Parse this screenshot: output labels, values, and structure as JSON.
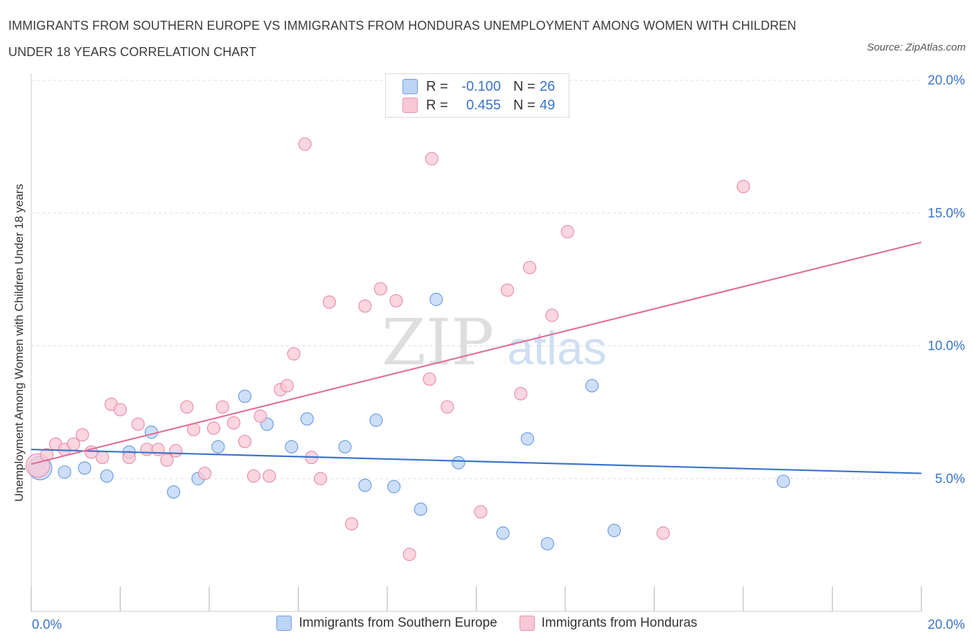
{
  "title": "IMMIGRANTS FROM SOUTHERN EUROPE VS IMMIGRANTS FROM HONDURAS UNEMPLOYMENT AMONG WOMEN WITH CHILDREN UNDER 18 YEARS CORRELATION CHART",
  "source": "Source: ZipAtlas.com",
  "watermark": {
    "zip": "ZIP",
    "atlas": "atlas"
  },
  "legend": {
    "r_label": "R =",
    "n_label": "N =",
    "series1": {
      "r": "-0.100",
      "n": "26"
    },
    "series2": {
      "r": "0.455",
      "n": "49"
    }
  },
  "colors": {
    "blue_fill": "#bcd4f5",
    "blue_stroke": "#6f9ee0",
    "blue_line": "#3a73c9",
    "pink_fill": "#f8c8d6",
    "pink_stroke": "#ea8fab",
    "pink_line": "#e0709a",
    "tick_label": "#3a73c9",
    "grid": "#dddddd"
  },
  "chart_data": {
    "type": "scatter",
    "title": "IMMIGRANTS FROM SOUTHERN EUROPE VS IMMIGRANTS FROM HONDURAS UNEMPLOYMENT AMONG WOMEN WITH CHILDREN UNDER 18 YEARS CORRELATION CHART",
    "xlabel": "",
    "ylabel": "Unemployment Among Women with Children Under 18 years",
    "xlim": [
      0,
      20
    ],
    "ylim": [
      0,
      20
    ],
    "x_tick_labels": [
      "0.0%",
      "20.0%"
    ],
    "y_ticks": [
      5,
      10,
      15,
      20
    ],
    "y_tick_labels": [
      "5.0%",
      "10.0%",
      "15.0%",
      "20.0%"
    ],
    "grid": true,
    "series": [
      {
        "name": "Immigrants from Southern Europe",
        "color": "#6f9ee0",
        "trend": {
          "x": [
            0,
            20
          ],
          "y": [
            6.1,
            5.2
          ]
        },
        "points": [
          {
            "x": 0.2,
            "y": 5.4,
            "big": true
          },
          {
            "x": 0.75,
            "y": 5.25
          },
          {
            "x": 1.2,
            "y": 5.4
          },
          {
            "x": 1.7,
            "y": 5.1
          },
          {
            "x": 2.2,
            "y": 6.0
          },
          {
            "x": 2.7,
            "y": 6.75
          },
          {
            "x": 3.2,
            "y": 4.5
          },
          {
            "x": 3.75,
            "y": 5.0
          },
          {
            "x": 4.2,
            "y": 6.2
          },
          {
            "x": 4.8,
            "y": 8.1
          },
          {
            "x": 5.3,
            "y": 7.05
          },
          {
            "x": 5.85,
            "y": 6.2
          },
          {
            "x": 6.2,
            "y": 7.25
          },
          {
            "x": 7.05,
            "y": 6.2
          },
          {
            "x": 7.5,
            "y": 4.75
          },
          {
            "x": 7.75,
            "y": 7.2
          },
          {
            "x": 8.15,
            "y": 4.7
          },
          {
            "x": 8.75,
            "y": 3.85
          },
          {
            "x": 9.1,
            "y": 11.75
          },
          {
            "x": 9.6,
            "y": 5.6
          },
          {
            "x": 10.6,
            "y": 2.95
          },
          {
            "x": 11.15,
            "y": 6.5
          },
          {
            "x": 11.6,
            "y": 2.55
          },
          {
            "x": 12.6,
            "y": 8.5
          },
          {
            "x": 13.1,
            "y": 3.05
          },
          {
            "x": 16.9,
            "y": 4.9
          }
        ]
      },
      {
        "name": "Immigrants from Honduras",
        "color": "#ea8fab",
        "trend": {
          "x": [
            0,
            20
          ],
          "y": [
            5.55,
            13.9
          ]
        },
        "points": [
          {
            "x": 0.15,
            "y": 5.5,
            "big": true
          },
          {
            "x": 0.35,
            "y": 5.9
          },
          {
            "x": 0.55,
            "y": 6.3
          },
          {
            "x": 0.75,
            "y": 6.1
          },
          {
            "x": 0.95,
            "y": 6.3
          },
          {
            "x": 1.15,
            "y": 6.65
          },
          {
            "x": 1.35,
            "y": 6.0
          },
          {
            "x": 1.6,
            "y": 5.8
          },
          {
            "x": 1.8,
            "y": 7.8
          },
          {
            "x": 2.0,
            "y": 7.6
          },
          {
            "x": 2.2,
            "y": 5.8
          },
          {
            "x": 2.4,
            "y": 7.05
          },
          {
            "x": 2.6,
            "y": 6.1
          },
          {
            "x": 2.85,
            "y": 6.1
          },
          {
            "x": 3.05,
            "y": 5.7
          },
          {
            "x": 3.25,
            "y": 6.05
          },
          {
            "x": 3.5,
            "y": 7.7
          },
          {
            "x": 3.65,
            "y": 6.85
          },
          {
            "x": 3.9,
            "y": 5.2
          },
          {
            "x": 4.1,
            "y": 6.9
          },
          {
            "x": 4.3,
            "y": 7.7
          },
          {
            "x": 4.55,
            "y": 7.1
          },
          {
            "x": 4.8,
            "y": 6.4
          },
          {
            "x": 5.0,
            "y": 5.1
          },
          {
            "x": 5.15,
            "y": 7.35
          },
          {
            "x": 5.35,
            "y": 5.1
          },
          {
            "x": 5.6,
            "y": 8.35
          },
          {
            "x": 5.75,
            "y": 8.5
          },
          {
            "x": 5.9,
            "y": 9.7
          },
          {
            "x": 6.15,
            "y": 17.6
          },
          {
            "x": 6.3,
            "y": 5.8
          },
          {
            "x": 6.5,
            "y": 5.0
          },
          {
            "x": 6.7,
            "y": 11.65
          },
          {
            "x": 7.2,
            "y": 3.3
          },
          {
            "x": 7.5,
            "y": 11.5
          },
          {
            "x": 7.85,
            "y": 12.15
          },
          {
            "x": 8.2,
            "y": 11.7
          },
          {
            "x": 8.5,
            "y": 2.15
          },
          {
            "x": 8.95,
            "y": 8.75
          },
          {
            "x": 9.0,
            "y": 17.05
          },
          {
            "x": 9.35,
            "y": 7.7
          },
          {
            "x": 10.1,
            "y": 3.75
          },
          {
            "x": 10.7,
            "y": 12.1
          },
          {
            "x": 11.0,
            "y": 8.2
          },
          {
            "x": 11.2,
            "y": 12.95
          },
          {
            "x": 11.7,
            "y": 11.15
          },
          {
            "x": 12.05,
            "y": 14.3
          },
          {
            "x": 14.2,
            "y": 2.95
          },
          {
            "x": 16.0,
            "y": 16.0
          }
        ]
      }
    ]
  }
}
